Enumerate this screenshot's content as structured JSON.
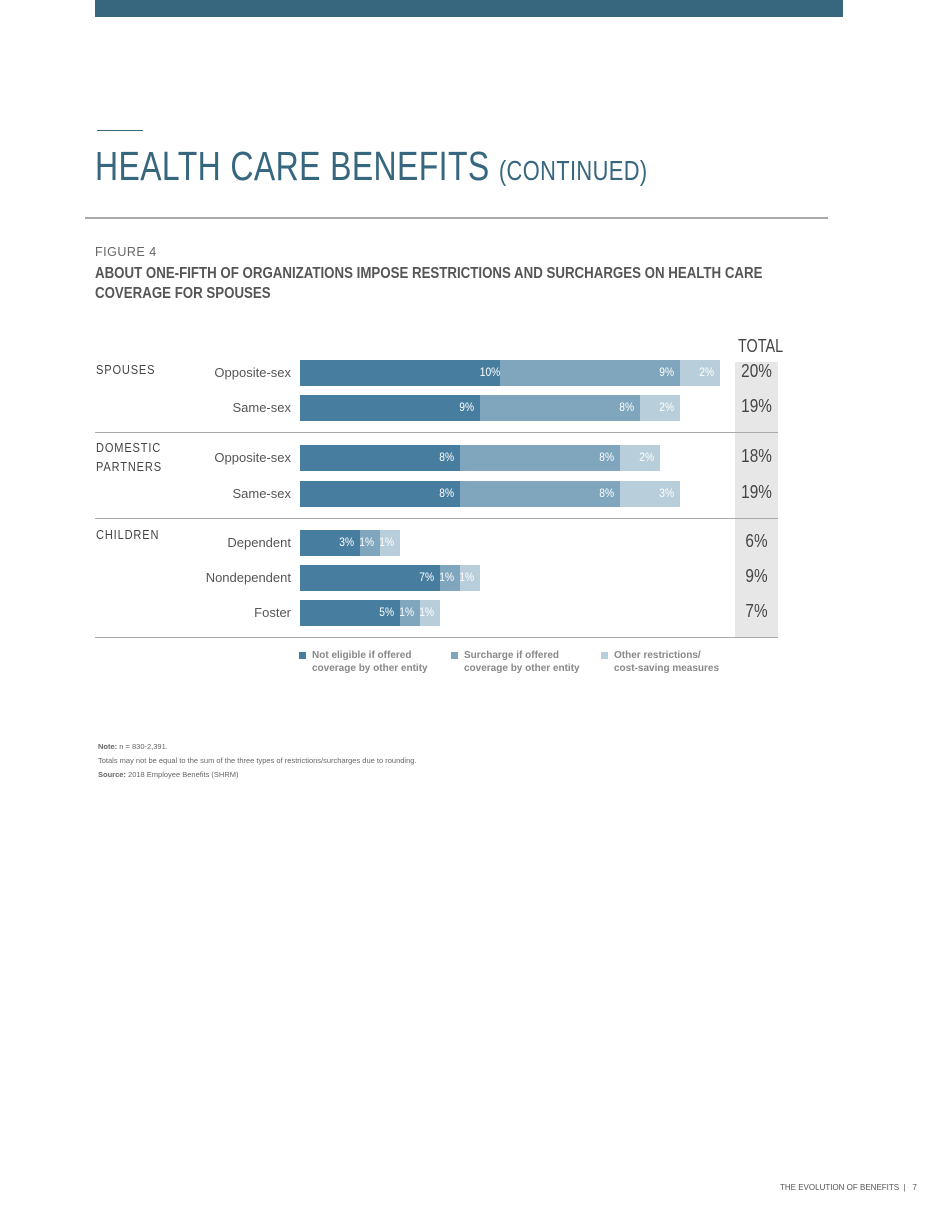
{
  "header": {
    "title": "HEALTH CARE BENEFITS",
    "title_suffix": "(CONTINUED)",
    "figure_label": "FIGURE 4",
    "figure_title": "ABOUT ONE-FIFTH OF ORGANIZATIONS IMPOSE RESTRICTIONS AND SURCHARGES ON HEALTH CARE COVERAGE FOR SPOUSES"
  },
  "chart_data": {
    "type": "bar",
    "orientation": "horizontal",
    "stacked": true,
    "total_label": "TOTAL",
    "groups": [
      {
        "label": "SPOUSES",
        "rows": [
          {
            "label": "Opposite-sex",
            "values": [
              10,
              9,
              2
            ],
            "total": "20%"
          },
          {
            "label": "Same-sex",
            "values": [
              9,
              8,
              2
            ],
            "total": "19%"
          }
        ]
      },
      {
        "label": "DOMESTIC PARTNERS",
        "rows": [
          {
            "label": "Opposite-sex",
            "values": [
              8,
              8,
              2
            ],
            "total": "18%"
          },
          {
            "label": "Same-sex",
            "values": [
              8,
              8,
              3
            ],
            "total": "19%"
          }
        ]
      },
      {
        "label": "CHILDREN",
        "rows": [
          {
            "label": "Dependent",
            "values": [
              3,
              1,
              1
            ],
            "total": "6%"
          },
          {
            "label": "Nondependent",
            "values": [
              7,
              1,
              1
            ],
            "total": "9%"
          },
          {
            "label": "Foster",
            "values": [
              5,
              1,
              1
            ],
            "total": "7%"
          }
        ]
      }
    ],
    "series": [
      {
        "name": "Not eligible if offered coverage by other entity",
        "color": "#477e9f"
      },
      {
        "name": "Surcharge if offered coverage by other entity",
        "color": "#7fa6bc"
      },
      {
        "name": "Other restrictions/ cost-saving measures",
        "color": "#b8cfdb"
      }
    ],
    "legend_placement": "bottom"
  },
  "notes": {
    "note_label": "Note:",
    "note_text": "n = 830-2,391.",
    "line2": "Totals may not be equal to the sum of the three types of restrictions/surcharges due to rounding.",
    "source_label": "Source:",
    "source_text": "2018 Employee Benefits (SHRM)"
  },
  "footer": {
    "text": "THE EVOLUTION OF BENEFITS",
    "page": "7"
  }
}
